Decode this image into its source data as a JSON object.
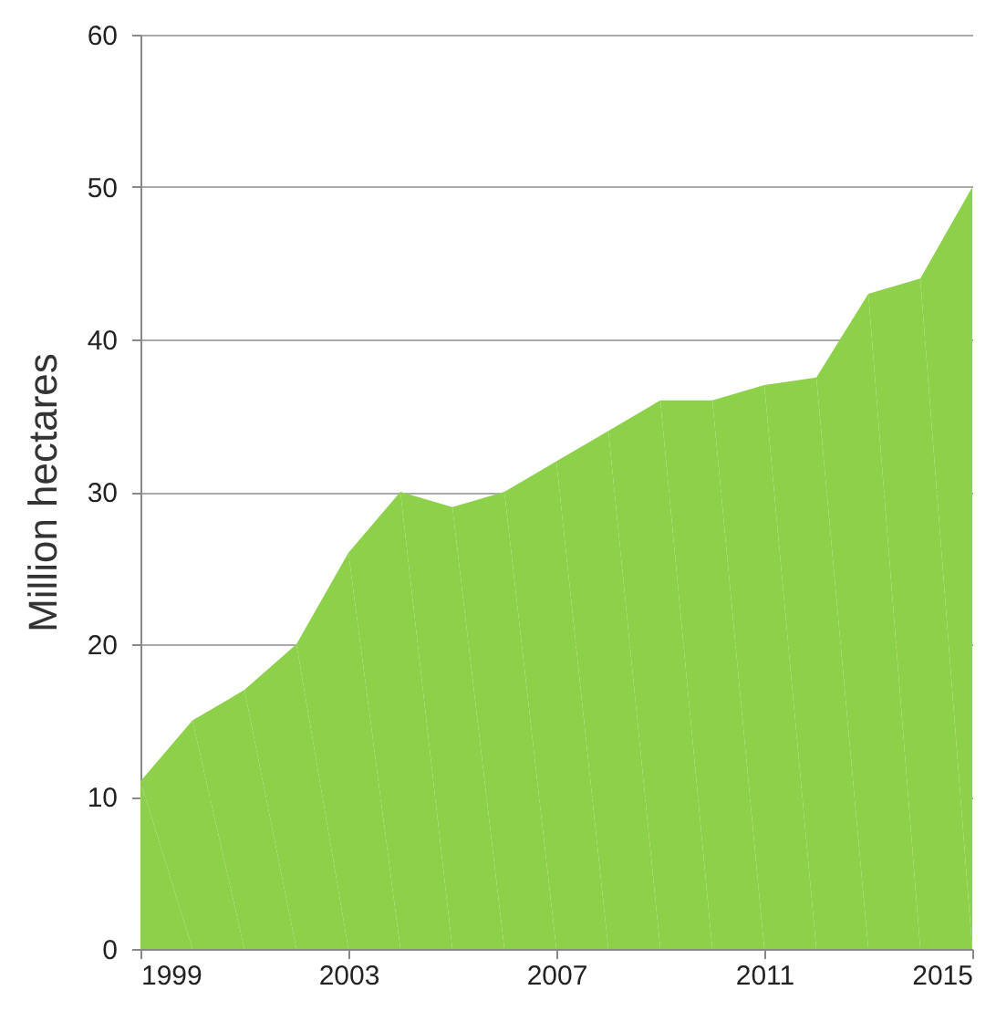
{
  "chart_data": {
    "type": "area",
    "ylabel": "Million hectares",
    "x": [
      1999,
      2000,
      2001,
      2002,
      2003,
      2004,
      2005,
      2006,
      2007,
      2008,
      2009,
      2010,
      2011,
      2012,
      2013,
      2014,
      2015
    ],
    "series": [
      {
        "color": "#8dd04a",
        "values": [
          11,
          15,
          17,
          20,
          26,
          30,
          29,
          30,
          32,
          34,
          36,
          36,
          37,
          37.5,
          43,
          44,
          50
        ]
      }
    ],
    "xlim": [
      1999,
      2015
    ],
    "xticks": [
      1999,
      2003,
      2007,
      2011,
      2015
    ],
    "ylim": [
      0,
      60
    ],
    "yticks": [
      0,
      10,
      20,
      30,
      40,
      50,
      60
    ],
    "grid": "y"
  }
}
